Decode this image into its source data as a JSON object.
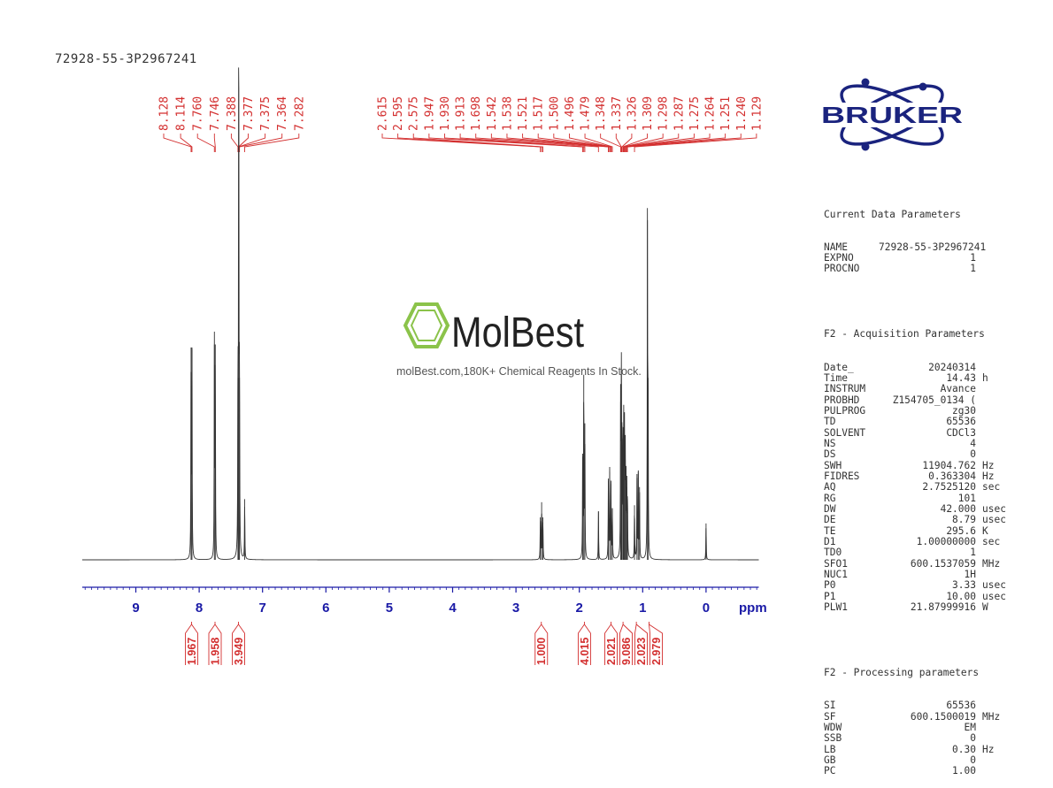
{
  "title": "72928-55-3P2967241",
  "chart_data": {
    "type": "line",
    "x_unit": "ppm",
    "xlim": [
      10,
      -1
    ],
    "x_ticks": [
      "9",
      "8",
      "7",
      "6",
      "5",
      "4",
      "3",
      "2",
      "1",
      "0"
    ],
    "peak_labels": {
      "group1": [
        "8.128",
        "8.114",
        "7.760",
        "7.746",
        "7.388",
        "7.377",
        "7.375",
        "7.364",
        "7.282"
      ],
      "group2": [
        "2.615",
        "2.595",
        "2.575",
        "1.947",
        "1.930",
        "1.913",
        "1.698",
        "1.542",
        "1.538",
        "1.521",
        "1.517",
        "1.500",
        "1.496",
        "1.479",
        "1.348",
        "1.337",
        "1.326",
        "1.309",
        "1.298",
        "1.287",
        "1.275",
        "1.264",
        "1.251",
        "1.240",
        "1.129"
      ]
    },
    "integrals": [
      {
        "value": "1.967",
        "ppm": 8.12
      },
      {
        "value": "1.958",
        "ppm": 7.75
      },
      {
        "value": "3.949",
        "ppm": 7.38
      },
      {
        "value": "1.000",
        "ppm": 2.6
      },
      {
        "value": "4.015",
        "ppm": 1.92
      },
      {
        "value": "2.021",
        "ppm": 1.5
      },
      {
        "value": "9.086",
        "ppm": 1.31
      },
      {
        "value": "2.023",
        "ppm": 1.1
      },
      {
        "value": "2.979",
        "ppm": 0.9
      }
    ],
    "peaks": [
      {
        "ppm": 8.128,
        "intensity": 0.7
      },
      {
        "ppm": 8.114,
        "intensity": 0.7
      },
      {
        "ppm": 7.76,
        "intensity": 0.71
      },
      {
        "ppm": 7.746,
        "intensity": 0.71
      },
      {
        "ppm": 7.388,
        "intensity": 0.6
      },
      {
        "ppm": 7.377,
        "intensity": 1.0
      },
      {
        "ppm": 7.375,
        "intensity": 1.0
      },
      {
        "ppm": 7.364,
        "intensity": 0.6
      },
      {
        "ppm": 7.282,
        "intensity": 0.2
      },
      {
        "ppm": 2.615,
        "intensity": 0.14
      },
      {
        "ppm": 2.595,
        "intensity": 0.19
      },
      {
        "ppm": 2.575,
        "intensity": 0.14
      },
      {
        "ppm": 1.947,
        "intensity": 0.35
      },
      {
        "ppm": 1.93,
        "intensity": 0.61
      },
      {
        "ppm": 1.913,
        "intensity": 0.45
      },
      {
        "ppm": 1.698,
        "intensity": 0.16
      },
      {
        "ppm": 1.542,
        "intensity": 0.26
      },
      {
        "ppm": 1.521,
        "intensity": 0.29
      },
      {
        "ppm": 1.5,
        "intensity": 0.25
      },
      {
        "ppm": 1.479,
        "intensity": 0.17
      },
      {
        "ppm": 1.348,
        "intensity": 0.52
      },
      {
        "ppm": 1.337,
        "intensity": 0.61
      },
      {
        "ppm": 1.326,
        "intensity": 0.44
      },
      {
        "ppm": 1.309,
        "intensity": 0.4
      },
      {
        "ppm": 1.298,
        "intensity": 0.46
      },
      {
        "ppm": 1.287,
        "intensity": 0.39
      },
      {
        "ppm": 1.275,
        "intensity": 0.33
      },
      {
        "ppm": 1.264,
        "intensity": 0.3
      },
      {
        "ppm": 1.251,
        "intensity": 0.24
      },
      {
        "ppm": 1.24,
        "intensity": 0.2
      },
      {
        "ppm": 1.129,
        "intensity": 0.18
      },
      {
        "ppm": 1.09,
        "intensity": 0.27
      },
      {
        "ppm": 1.07,
        "intensity": 0.29
      },
      {
        "ppm": 1.05,
        "intensity": 0.24
      },
      {
        "ppm": 0.925,
        "intensity": 1.12
      },
      {
        "ppm": 0.915,
        "intensity": 0.6
      },
      {
        "ppm": 0.0,
        "intensity": 0.12
      }
    ]
  },
  "logo": {
    "text": "BRUKER",
    "color": "#1a237e"
  },
  "watermark": {
    "brand": "MolBest",
    "caption": "molBest.com,180K+ Chemical Reagents In Stock.",
    "accent": "#8bc34a"
  },
  "params": {
    "current": {
      "header": "Current Data Parameters",
      "rows": [
        {
          "name": "NAME",
          "value": "72928-55-3P2967241",
          "unit": ""
        },
        {
          "name": "EXPNO",
          "value": "1",
          "unit": ""
        },
        {
          "name": "PROCNO",
          "value": "1",
          "unit": ""
        }
      ]
    },
    "acq": {
      "header": "F2 - Acquisition Parameters",
      "rows": [
        {
          "name": "Date_",
          "value": "20240314",
          "unit": ""
        },
        {
          "name": "Time",
          "value": "14.43",
          "unit": "h"
        },
        {
          "name": "INSTRUM",
          "value": "Avance",
          "unit": ""
        },
        {
          "name": "PROBHD",
          "value": "Z154705_0134 (",
          "unit": ""
        },
        {
          "name": "PULPROG",
          "value": "zg30",
          "unit": ""
        },
        {
          "name": "TD",
          "value": "65536",
          "unit": ""
        },
        {
          "name": "SOLVENT",
          "value": "CDCl3",
          "unit": ""
        },
        {
          "name": "NS",
          "value": "4",
          "unit": ""
        },
        {
          "name": "DS",
          "value": "0",
          "unit": ""
        },
        {
          "name": "SWH",
          "value": "11904.762",
          "unit": "Hz"
        },
        {
          "name": "FIDRES",
          "value": "0.363304",
          "unit": "Hz"
        },
        {
          "name": "AQ",
          "value": "2.7525120",
          "unit": "sec"
        },
        {
          "name": "RG",
          "value": "101",
          "unit": ""
        },
        {
          "name": "DW",
          "value": "42.000",
          "unit": "usec"
        },
        {
          "name": "DE",
          "value": "8.79",
          "unit": "usec"
        },
        {
          "name": "TE",
          "value": "295.6",
          "unit": "K"
        },
        {
          "name": "D1",
          "value": "1.00000000",
          "unit": "sec"
        },
        {
          "name": "TD0",
          "value": "1",
          "unit": ""
        },
        {
          "name": "SFO1",
          "value": "600.1537059",
          "unit": "MHz"
        },
        {
          "name": "NUC1",
          "value": "1H",
          "unit": ""
        },
        {
          "name": "P0",
          "value": "3.33",
          "unit": "usec"
        },
        {
          "name": "P1",
          "value": "10.00",
          "unit": "usec"
        },
        {
          "name": "PLW1",
          "value": "21.87999916",
          "unit": "W"
        }
      ]
    },
    "proc": {
      "header": "F2 - Processing parameters",
      "rows": [
        {
          "name": "SI",
          "value": "65536",
          "unit": ""
        },
        {
          "name": "SF",
          "value": "600.1500019",
          "unit": "MHz"
        },
        {
          "name": "WDW",
          "value": "EM",
          "unit": ""
        },
        {
          "name": "SSB",
          "value": "0",
          "unit": ""
        },
        {
          "name": "LB",
          "value": "0.30",
          "unit": "Hz"
        },
        {
          "name": "GB",
          "value": "0",
          "unit": ""
        },
        {
          "name": "PC",
          "value": "1.00",
          "unit": ""
        }
      ]
    }
  },
  "colors": {
    "label": "#d32f2f",
    "axis": "#1a1aa6",
    "trace": "#333333"
  }
}
